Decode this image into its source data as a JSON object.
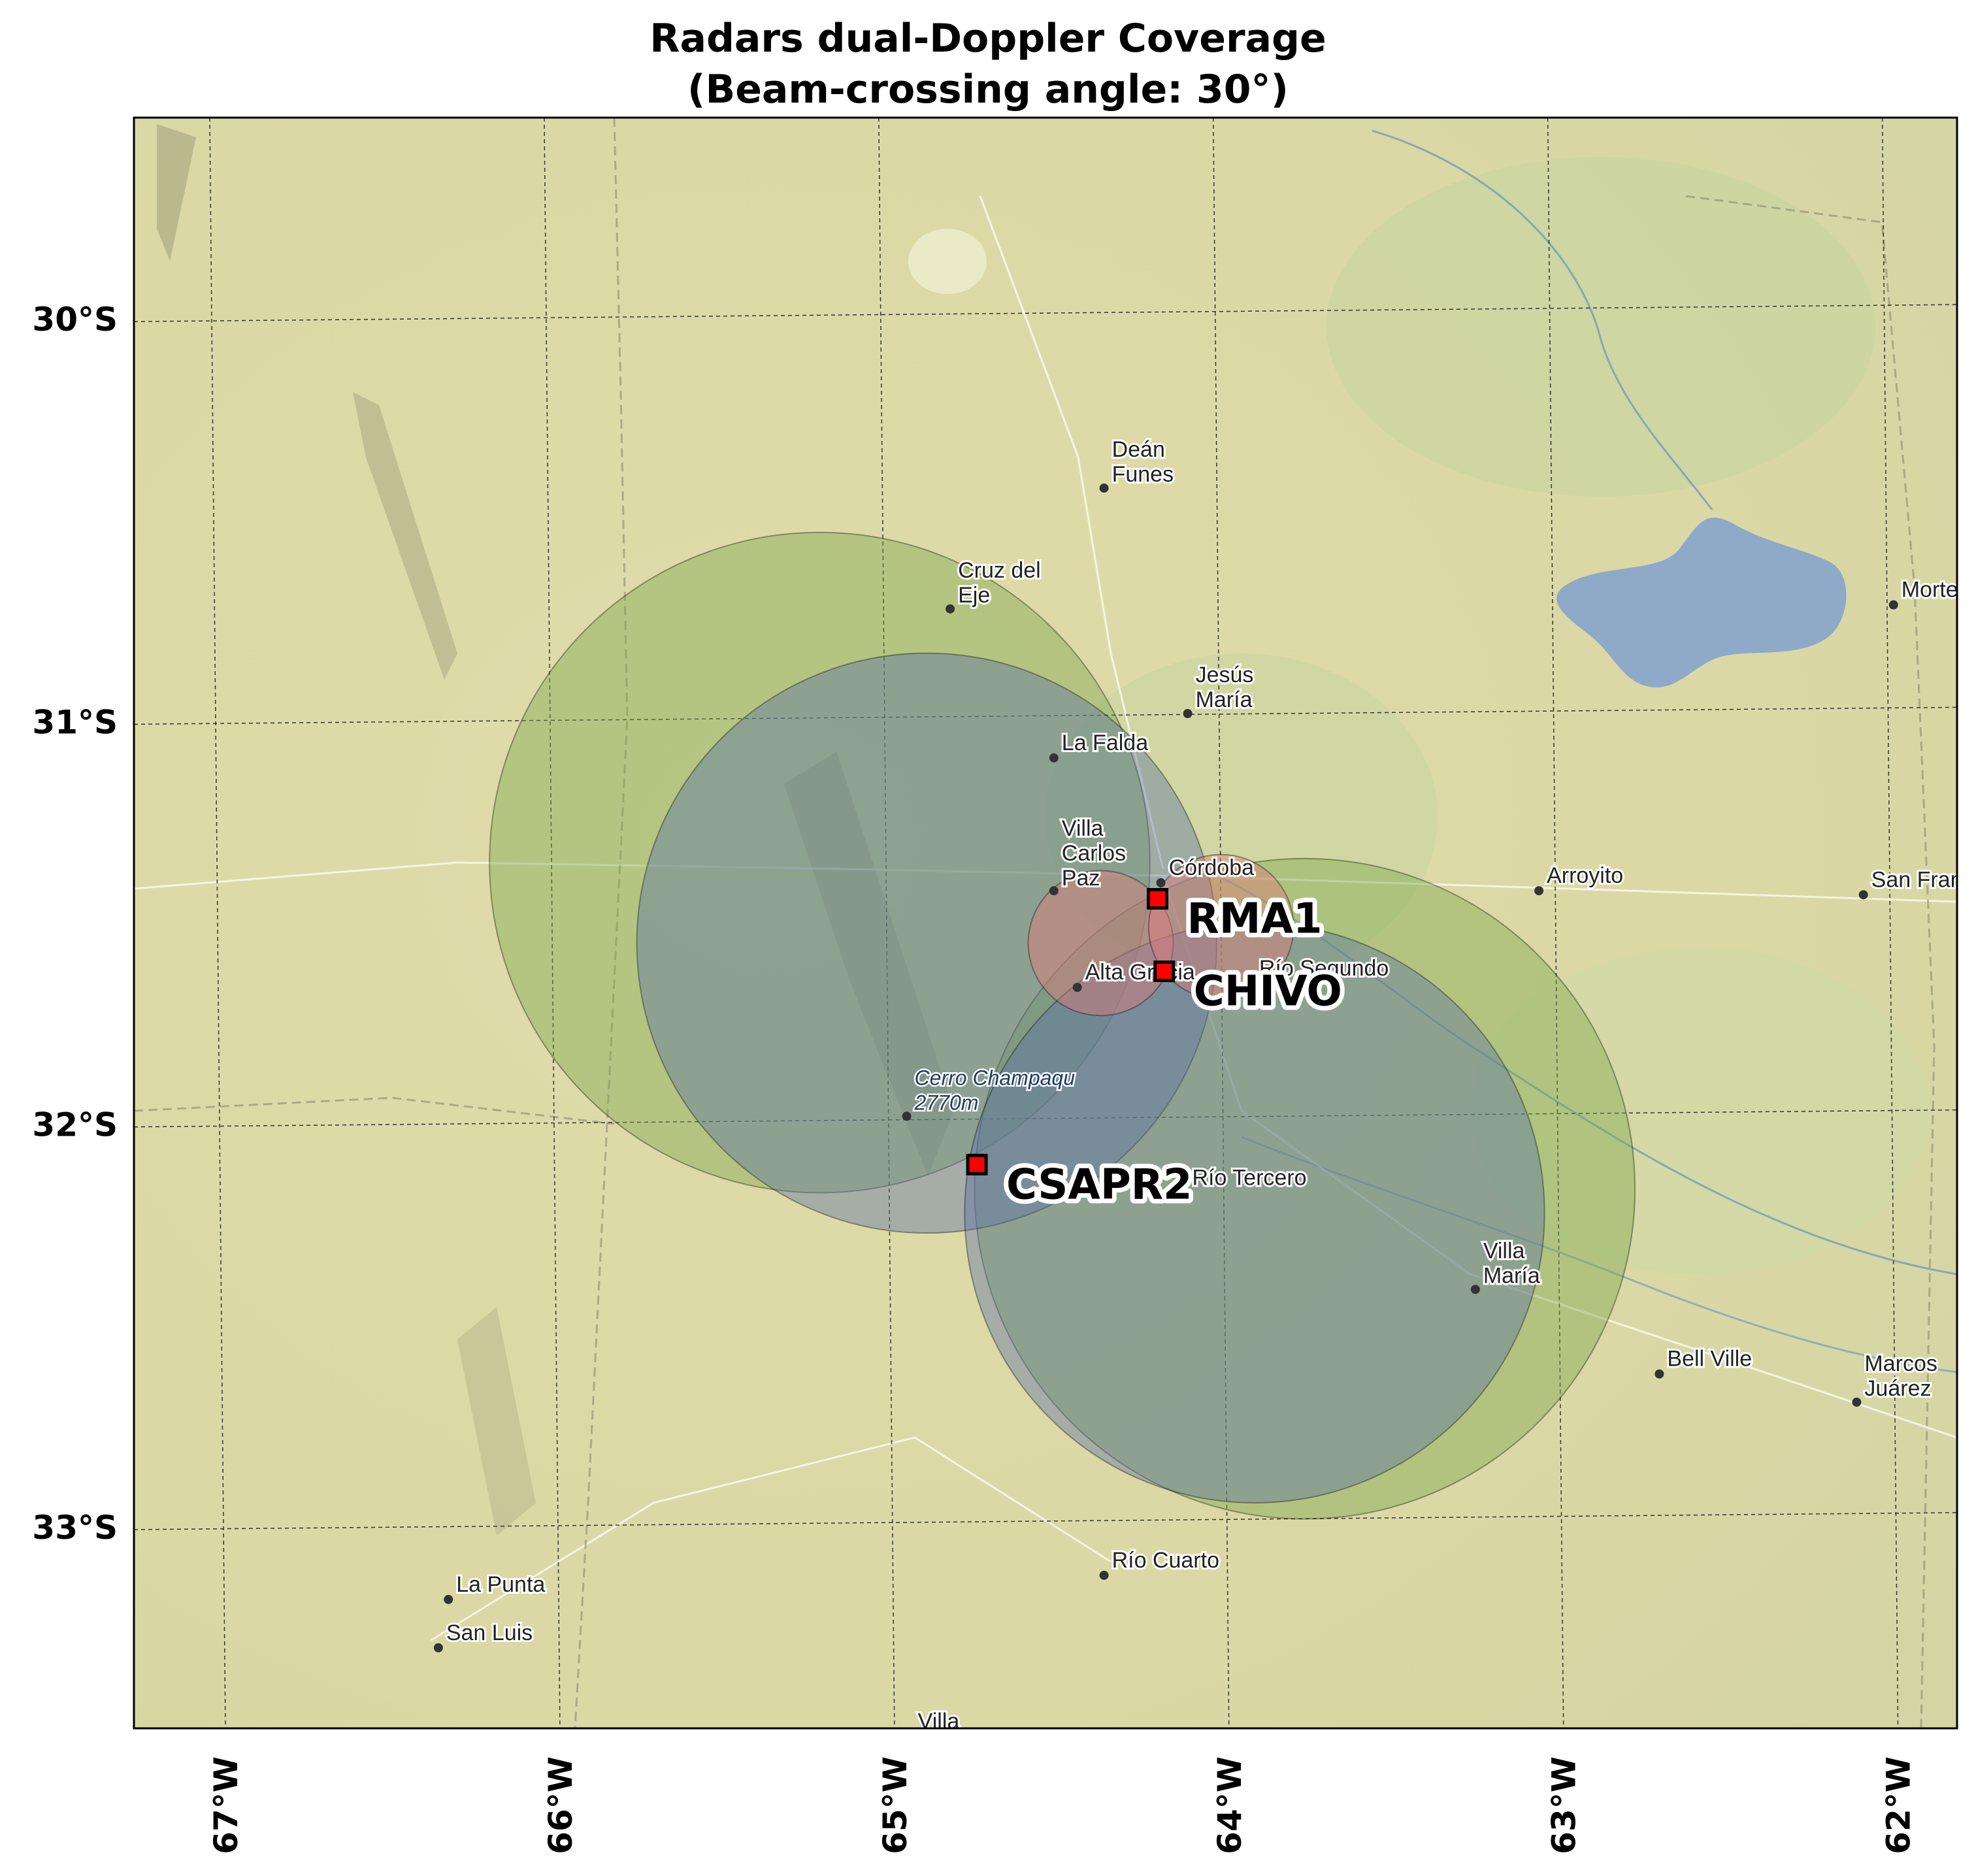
{
  "title": {
    "line1": "Radars dual-Doppler Coverage",
    "line2": "(Beam-crossing angle: 30°)"
  },
  "map": {
    "lon_range": [
      -67.25,
      -61.8
    ],
    "lat_range": [
      -33.5,
      -29.5
    ],
    "lat_ticks": [
      {
        "value": -30,
        "label": "30°S"
      },
      {
        "value": -31,
        "label": "31°S"
      },
      {
        "value": -32,
        "label": "32°S"
      },
      {
        "value": -33,
        "label": "33°S"
      }
    ],
    "lon_ticks": [
      {
        "value": -67,
        "label": "67°W"
      },
      {
        "value": -66,
        "label": "66°W"
      },
      {
        "value": -65,
        "label": "65°W"
      },
      {
        "value": -64,
        "label": "64°W"
      },
      {
        "value": -63,
        "label": "63°W"
      },
      {
        "value": -62,
        "label": "62°W"
      }
    ],
    "gridlines": true,
    "colors": {
      "terrain": "#ddd9a9",
      "water": "#8fa9c8",
      "green_lobe": "#7aa84b",
      "blue_lobe": "#5a6fa8",
      "red_lobe": "#e07a7a",
      "radar_marker": "#ff0000"
    }
  },
  "radars": [
    {
      "name": "RMA1",
      "lon": -64.19,
      "lat": -31.44
    },
    {
      "name": "CHIVO",
      "lon": -64.17,
      "lat": -31.62
    },
    {
      "name": "CSAPR2",
      "lon": -64.73,
      "lat": -32.1
    }
  ],
  "coverage_lobes": [
    {
      "pair": "RMA1-CSAPR2",
      "color": "green",
      "center_lon": -65.2,
      "center_lat": -31.35,
      "radius_deg_lat": 0.82
    },
    {
      "pair": "RMA1-CSAPR2",
      "color": "green",
      "center_lon": -63.75,
      "center_lat": -32.16,
      "radius_deg_lat": 0.82
    },
    {
      "pair": "CHIVO-CSAPR2",
      "color": "blue",
      "center_lon": -64.88,
      "center_lat": -31.55,
      "radius_deg_lat": 0.72
    },
    {
      "pair": "CHIVO-CSAPR2",
      "color": "blue",
      "center_lon": -63.9,
      "center_lat": -32.22,
      "radius_deg_lat": 0.72
    },
    {
      "pair": "RMA1-CHIVO",
      "color": "red",
      "center_lon": -64.36,
      "center_lat": -31.55,
      "radius_deg_lat": 0.18
    },
    {
      "pair": "RMA1-CHIVO",
      "color": "red",
      "center_lon": -64.0,
      "center_lat": -31.51,
      "radius_deg_lat": 0.18
    }
  ],
  "places": [
    {
      "name": "Deán\nFunes",
      "lon": -64.35,
      "lat": -30.42
    },
    {
      "name": "Cruz del\nEje",
      "lon": -64.81,
      "lat": -30.72
    },
    {
      "name": "Jesús\nMaría",
      "lon": -64.1,
      "lat": -30.98
    },
    {
      "name": "La Falda",
      "lon": -64.5,
      "lat": -31.09
    },
    {
      "name": "Villa\nCarlos\nPaz",
      "lon": -64.5,
      "lat": -31.42
    },
    {
      "name": "Córdoba",
      "lon": -64.18,
      "lat": -31.4
    },
    {
      "name": "Alta Gracia",
      "lon": -64.43,
      "lat": -31.66
    },
    {
      "name": "Río Segundo",
      "lon": -63.91,
      "lat": -31.65
    },
    {
      "name": "Arroyito",
      "lon": -63.05,
      "lat": -31.42
    },
    {
      "name": "San Francisco",
      "lon": -62.08,
      "lat": -31.43
    },
    {
      "name": "Morteros",
      "lon": -61.99,
      "lat": -30.71
    },
    {
      "name": "Río Tercero",
      "lon": -64.11,
      "lat": -32.17
    },
    {
      "name": "Villa\nMaría",
      "lon": -63.24,
      "lat": -32.41
    },
    {
      "name": "Bell Ville",
      "lon": -62.69,
      "lat": -32.62
    },
    {
      "name": "Marcos\nJuárez",
      "lon": -62.1,
      "lat": -32.69
    },
    {
      "name": "Río Cuarto",
      "lon": -64.35,
      "lat": -33.12
    },
    {
      "name": "La Punta",
      "lon": -66.31,
      "lat": -33.18
    },
    {
      "name": "San Luis",
      "lon": -66.34,
      "lat": -33.3
    },
    {
      "name": "Cerro Champaqu\n2770m",
      "lon": -64.94,
      "lat": -31.98
    },
    {
      "name": "Villa",
      "lon": -64.93,
      "lat": -33.52
    }
  ]
}
